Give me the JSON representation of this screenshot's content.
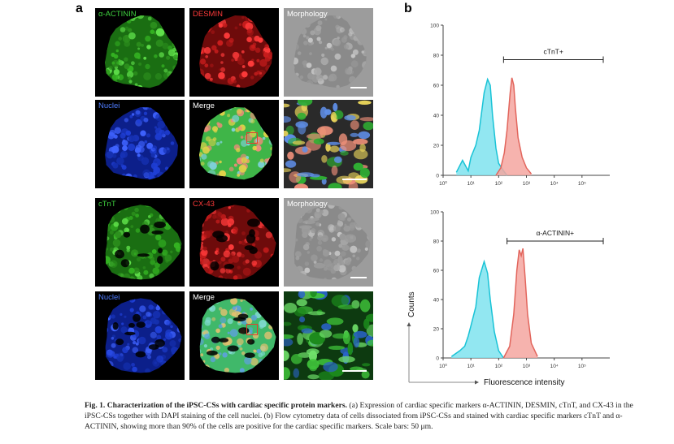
{
  "figure": {
    "panel_a_letter": "a",
    "panel_b_letter": "b",
    "panel_a": {
      "group1": {
        "tiles": [
          {
            "label": "α-ACTININ",
            "label_color": "#3fd13f",
            "stain": "green",
            "style": "sphere"
          },
          {
            "label": "DESMIN",
            "label_color": "#ff3a3a",
            "stain": "red",
            "style": "sphere"
          },
          {
            "label": "Morphology",
            "label_color": "#ffffff",
            "stain": "gray",
            "style": "sphere"
          },
          {
            "label": "Nuclei",
            "label_color": "#4f7dff",
            "stain": "blue",
            "style": "sphere"
          },
          {
            "label": "Merge",
            "label_color": "#ffffff",
            "stain": "merge",
            "style": "sphere"
          },
          {
            "label": "",
            "label_color": "#ffffff",
            "stain": "merge_zoom",
            "style": "zoom"
          }
        ]
      },
      "group2": {
        "tiles": [
          {
            "label": "cTnT",
            "label_color": "#3fd13f",
            "stain": "green",
            "style": "sphere"
          },
          {
            "label": "CX-43",
            "label_color": "#ff3a3a",
            "stain": "red",
            "style": "sphere"
          },
          {
            "label": "Morphology",
            "label_color": "#ffffff",
            "stain": "gray",
            "style": "sphere"
          },
          {
            "label": "Nuclei",
            "label_color": "#4f7dff",
            "stain": "blue",
            "style": "sphere"
          },
          {
            "label": "Merge",
            "label_color": "#ffffff",
            "stain": "merge2",
            "style": "sphere"
          },
          {
            "label": "",
            "label_color": "#ffffff",
            "stain": "green_zoom",
            "style": "zoom"
          }
        ]
      }
    },
    "panel_b": {
      "y_axis_title": "Counts",
      "x_axis_title": "Fluorescence intensity",
      "colors": {
        "control_fill": "#7fe3ef",
        "control_line": "#19c3d6",
        "positive_fill": "#f4a6a0",
        "positive_line": "#e2655c",
        "axis": "#444444"
      },
      "plots": [
        {
          "gate_label": "cTnT+"
        },
        {
          "gate_label": "α-ACTININ+"
        }
      ]
    },
    "caption": {
      "title": "Fig. 1.  Characterization of the iPSC-CSs with cardiac specific protein markers.",
      "body": " (a) Expression of cardiac specific markers α-ACTININ, DESMIN, cTnT, and CX-43 in the iPSC-CSs together with DAPI staining of the cell nuclei. (b) Flow cytometry data of cells dissociated from iPSC-CSs and stained with cardiac specific markers cTnT and α-ACTININ, showing more than 90% of the cells are positive for the cardiac specific markers. Scale bars: 50 μm."
    }
  },
  "chart_data": [
    {
      "type": "area",
      "title": "",
      "xlabel": "",
      "ylabel": "",
      "x_scale": "log",
      "xlim": [
        1,
        1000000
      ],
      "ylim": [
        0,
        100
      ],
      "x_ticks": [
        "10⁰",
        "10¹",
        "10²",
        "10³",
        "10⁴",
        "10⁵"
      ],
      "y_ticks": [
        "0",
        "20",
        "40",
        "60",
        "80",
        "100"
      ],
      "gate": {
        "label": "cTnT+",
        "from": 150,
        "to": 1000000,
        "y": 77
      },
      "series": [
        {
          "role": "control",
          "x": [
            3,
            5,
            8,
            10,
            15,
            20,
            30,
            40,
            50,
            60,
            80,
            100,
            150,
            200
          ],
          "y": [
            2,
            10,
            3,
            12,
            20,
            30,
            55,
            64,
            60,
            40,
            18,
            8,
            3,
            0
          ]
        },
        {
          "role": "positive",
          "x": [
            80,
            120,
            160,
            200,
            260,
            300,
            350,
            400,
            500,
            700,
            1000,
            1500
          ],
          "y": [
            0,
            5,
            15,
            30,
            55,
            65,
            60,
            45,
            25,
            12,
            5,
            1
          ]
        }
      ]
    },
    {
      "type": "area",
      "title": "",
      "xlabel": "Fluorescence intensity",
      "ylabel": "Counts",
      "x_scale": "log",
      "xlim": [
        1,
        1000000
      ],
      "ylim": [
        0,
        100
      ],
      "x_ticks": [
        "10⁰",
        "10¹",
        "10²",
        "10³",
        "10⁴",
        "10⁵"
      ],
      "y_ticks": [
        "0",
        "20",
        "40",
        "60",
        "80",
        "100"
      ],
      "gate": {
        "label": "α-ACTININ+",
        "from": 200,
        "to": 1000000,
        "y": 80
      },
      "series": [
        {
          "role": "control",
          "x": [
            2,
            4,
            6,
            8,
            10,
            15,
            20,
            30,
            40,
            50,
            70,
            100,
            150
          ],
          "y": [
            1,
            5,
            8,
            15,
            22,
            35,
            55,
            66,
            58,
            40,
            18,
            5,
            0
          ]
        },
        {
          "role": "positive",
          "x": [
            150,
            250,
            350,
            450,
            550,
            650,
            750,
            900,
            1100,
            1500,
            2500
          ],
          "y": [
            0,
            8,
            30,
            60,
            74,
            70,
            75,
            55,
            30,
            10,
            1
          ]
        }
      ]
    }
  ]
}
